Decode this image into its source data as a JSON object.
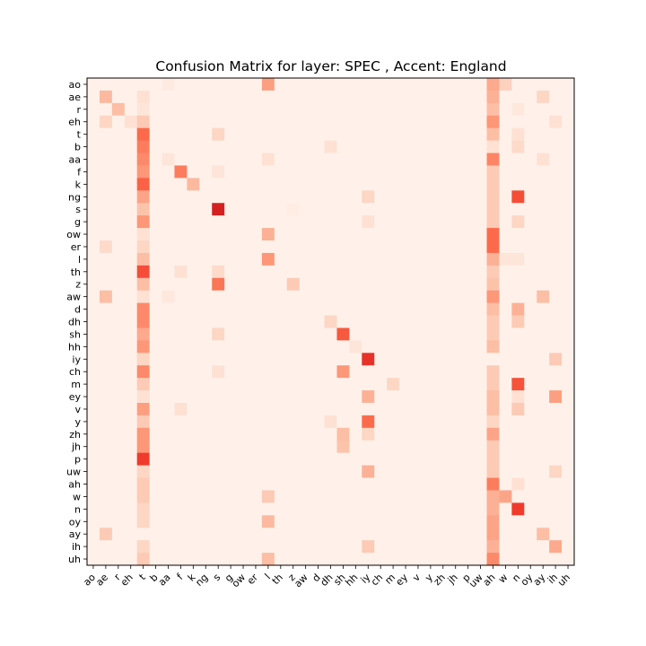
{
  "chart_data": {
    "type": "heatmap",
    "title": "Confusion Matrix for layer: SPEC , Accent: England",
    "xlabel": "",
    "ylabel": "",
    "colormap": "Reds",
    "vmin": 0,
    "vmax": 1,
    "grid": false,
    "y_labels": [
      "ao",
      "ae",
      "r",
      "eh",
      "t",
      "b",
      "aa",
      "f",
      "k",
      "ng",
      "s",
      "g",
      "ow",
      "er",
      "l",
      "th",
      "z",
      "aw",
      "d",
      "dh",
      "sh",
      "hh",
      "iy",
      "ch",
      "m",
      "ey",
      "v",
      "y",
      "zh",
      "jh",
      "p",
      "uw",
      "ah",
      "w",
      "n",
      "oy",
      "ay",
      "ih",
      "uh"
    ],
    "x_labels": [
      "ao",
      "ae",
      "r",
      "eh",
      "t",
      "b",
      "aa",
      "f",
      "k",
      "ng",
      "s",
      "g",
      "ow",
      "er",
      "l",
      "th",
      "z",
      "aw",
      "d",
      "dh",
      "sh",
      "hh",
      "iy",
      "ch",
      "m",
      "ey",
      "v",
      "y",
      "zh",
      "jh",
      "p",
      "uw",
      "ah",
      "w",
      "n",
      "oy",
      "ay",
      "ih",
      "uh"
    ],
    "baseline": 0.03,
    "cells": [
      [
        "ao",
        "aa",
        0.08
      ],
      [
        "ao",
        "l",
        0.42
      ],
      [
        "ao",
        "ah",
        0.38
      ],
      [
        "ao",
        "w",
        0.22
      ],
      [
        "ae",
        "ae",
        0.32
      ],
      [
        "ae",
        "t",
        0.15
      ],
      [
        "ae",
        "ah",
        0.35
      ],
      [
        "ae",
        "ay",
        0.2
      ],
      [
        "r",
        "r",
        0.3
      ],
      [
        "r",
        "t",
        0.12
      ],
      [
        "r",
        "ah",
        0.3
      ],
      [
        "r",
        "n",
        0.1
      ],
      [
        "eh",
        "ae",
        0.2
      ],
      [
        "eh",
        "eh",
        0.15
      ],
      [
        "eh",
        "t",
        0.25
      ],
      [
        "eh",
        "ah",
        0.45
      ],
      [
        "eh",
        "ih",
        0.15
      ],
      [
        "t",
        "t",
        0.62
      ],
      [
        "t",
        "s",
        0.2
      ],
      [
        "t",
        "ah",
        0.3
      ],
      [
        "t",
        "n",
        0.15
      ],
      [
        "b",
        "t",
        0.55
      ],
      [
        "b",
        "dh",
        0.15
      ],
      [
        "b",
        "ah",
        0.15
      ],
      [
        "b",
        "n",
        0.18
      ],
      [
        "aa",
        "t",
        0.5
      ],
      [
        "aa",
        "aa",
        0.12
      ],
      [
        "aa",
        "l",
        0.15
      ],
      [
        "aa",
        "ah",
        0.52
      ],
      [
        "aa",
        "ay",
        0.15
      ],
      [
        "f",
        "t",
        0.45
      ],
      [
        "f",
        "f",
        0.55
      ],
      [
        "f",
        "s",
        0.12
      ],
      [
        "f",
        "ah",
        0.25
      ],
      [
        "k",
        "t",
        0.65
      ],
      [
        "k",
        "k",
        0.32
      ],
      [
        "k",
        "ah",
        0.25
      ],
      [
        "ng",
        "t",
        0.4
      ],
      [
        "ng",
        "iy",
        0.2
      ],
      [
        "ng",
        "ah",
        0.25
      ],
      [
        "ng",
        "n",
        0.72
      ],
      [
        "s",
        "t",
        0.28
      ],
      [
        "s",
        "s",
        0.9
      ],
      [
        "s",
        "z",
        0.06
      ],
      [
        "s",
        "ah",
        0.25
      ],
      [
        "g",
        "t",
        0.45
      ],
      [
        "g",
        "iy",
        0.15
      ],
      [
        "g",
        "ah",
        0.25
      ],
      [
        "g",
        "n",
        0.2
      ],
      [
        "ow",
        "t",
        0.15
      ],
      [
        "ow",
        "l",
        0.35
      ],
      [
        "ow",
        "ah",
        0.62
      ],
      [
        "er",
        "ae",
        0.18
      ],
      [
        "er",
        "t",
        0.2
      ],
      [
        "er",
        "ah",
        0.62
      ],
      [
        "l",
        "t",
        0.3
      ],
      [
        "l",
        "l",
        0.45
      ],
      [
        "l",
        "ah",
        0.35
      ],
      [
        "l",
        "w",
        0.12
      ],
      [
        "l",
        "n",
        0.12
      ],
      [
        "th",
        "t",
        0.72
      ],
      [
        "th",
        "f",
        0.15
      ],
      [
        "th",
        "s",
        0.18
      ],
      [
        "th",
        "ah",
        0.25
      ],
      [
        "z",
        "t",
        0.3
      ],
      [
        "z",
        "s",
        0.58
      ],
      [
        "z",
        "z",
        0.25
      ],
      [
        "z",
        "ah",
        0.28
      ],
      [
        "aw",
        "ae",
        0.3
      ],
      [
        "aw",
        "t",
        0.15
      ],
      [
        "aw",
        "aa",
        0.1
      ],
      [
        "aw",
        "ah",
        0.45
      ],
      [
        "aw",
        "ay",
        0.3
      ],
      [
        "d",
        "t",
        0.5
      ],
      [
        "d",
        "ah",
        0.3
      ],
      [
        "d",
        "n",
        0.35
      ],
      [
        "dh",
        "t",
        0.5
      ],
      [
        "dh",
        "dh",
        0.2
      ],
      [
        "dh",
        "ah",
        0.25
      ],
      [
        "dh",
        "n",
        0.25
      ],
      [
        "sh",
        "t",
        0.38
      ],
      [
        "sh",
        "s",
        0.2
      ],
      [
        "sh",
        "sh",
        0.68
      ],
      [
        "sh",
        "ah",
        0.25
      ],
      [
        "hh",
        "t",
        0.45
      ],
      [
        "hh",
        "hh",
        0.12
      ],
      [
        "hh",
        "ah",
        0.3
      ],
      [
        "iy",
        "t",
        0.2
      ],
      [
        "iy",
        "iy",
        0.82
      ],
      [
        "iy",
        "ih",
        0.25
      ],
      [
        "ch",
        "t",
        0.5
      ],
      [
        "ch",
        "s",
        0.15
      ],
      [
        "ch",
        "sh",
        0.45
      ],
      [
        "ch",
        "ah",
        0.25
      ],
      [
        "m",
        "t",
        0.25
      ],
      [
        "m",
        "m",
        0.2
      ],
      [
        "m",
        "ah",
        0.25
      ],
      [
        "m",
        "n",
        0.7
      ],
      [
        "ey",
        "t",
        0.15
      ],
      [
        "ey",
        "iy",
        0.35
      ],
      [
        "ey",
        "ah",
        0.3
      ],
      [
        "ey",
        "n",
        0.15
      ],
      [
        "ey",
        "ih",
        0.42
      ],
      [
        "v",
        "t",
        0.42
      ],
      [
        "v",
        "f",
        0.15
      ],
      [
        "v",
        "ah",
        0.3
      ],
      [
        "v",
        "n",
        0.25
      ],
      [
        "y",
        "t",
        0.25
      ],
      [
        "y",
        "iy",
        0.62
      ],
      [
        "y",
        "dh",
        0.15
      ],
      [
        "y",
        "ah",
        0.2
      ],
      [
        "zh",
        "t",
        0.45
      ],
      [
        "zh",
        "sh",
        0.3
      ],
      [
        "zh",
        "iy",
        0.2
      ],
      [
        "zh",
        "ah",
        0.4
      ],
      [
        "jh",
        "t",
        0.45
      ],
      [
        "jh",
        "sh",
        0.28
      ],
      [
        "jh",
        "ah",
        0.25
      ],
      [
        "p",
        "t",
        0.78
      ],
      [
        "p",
        "ah",
        0.25
      ],
      [
        "uw",
        "t",
        0.2
      ],
      [
        "uw",
        "iy",
        0.35
      ],
      [
        "uw",
        "ah",
        0.25
      ],
      [
        "uw",
        "ih",
        0.2
      ],
      [
        "ah",
        "t",
        0.25
      ],
      [
        "ah",
        "ah",
        0.55
      ],
      [
        "ah",
        "n",
        0.15
      ],
      [
        "w",
        "t",
        0.25
      ],
      [
        "w",
        "l",
        0.25
      ],
      [
        "w",
        "ah",
        0.35
      ],
      [
        "w",
        "w",
        0.4
      ],
      [
        "n",
        "t",
        0.2
      ],
      [
        "n",
        "ah",
        0.35
      ],
      [
        "n",
        "n",
        0.78
      ],
      [
        "oy",
        "t",
        0.2
      ],
      [
        "oy",
        "l",
        0.32
      ],
      [
        "oy",
        "ah",
        0.4
      ],
      [
        "ay",
        "ae",
        0.25
      ],
      [
        "ay",
        "ah",
        0.4
      ],
      [
        "ay",
        "ay",
        0.3
      ],
      [
        "ih",
        "t",
        0.2
      ],
      [
        "ih",
        "iy",
        0.25
      ],
      [
        "ih",
        "ah",
        0.35
      ],
      [
        "ih",
        "ih",
        0.38
      ],
      [
        "uh",
        "t",
        0.25
      ],
      [
        "uh",
        "l",
        0.3
      ],
      [
        "uh",
        "ah",
        0.5
      ]
    ]
  }
}
